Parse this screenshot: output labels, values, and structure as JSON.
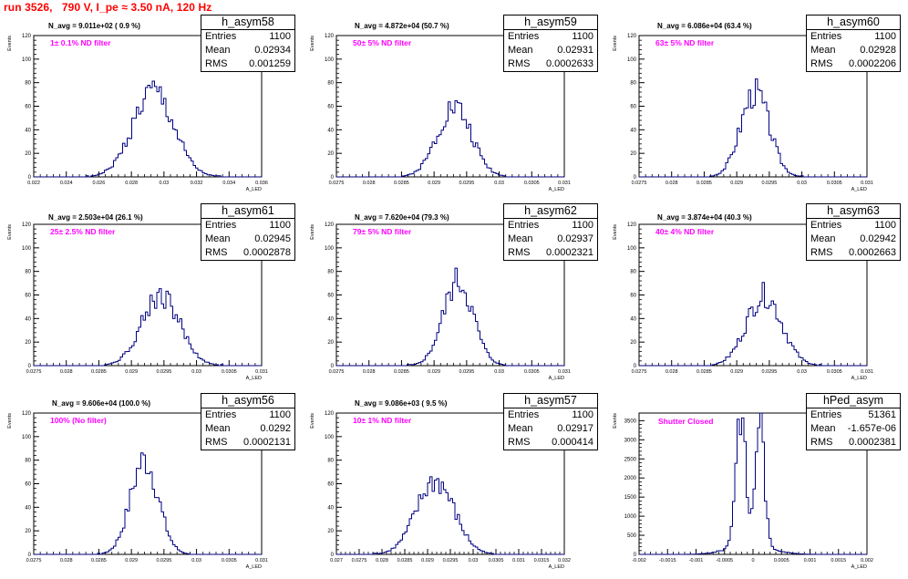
{
  "title": "run 3526,   790 V, I_pe ≈ 3.50 nA, 120 Hz",
  "chart_data": [
    {
      "type": "histogram",
      "name": "h_asym58",
      "navg": "N_avg = 9.011e+02 ( 0.9 %)",
      "filter": "1± 0.1% ND filter",
      "stats": {
        "entries": "1100",
        "mean": "0.02934",
        "rms": "0.001259"
      },
      "xlim": [
        0.022,
        0.036
      ],
      "ylim": [
        0,
        120
      ],
      "xticks": [
        "0.022",
        "0.024",
        "0.026",
        "0.028",
        "0.03",
        "0.032",
        "0.034",
        "0.036"
      ],
      "yticks": [
        "0",
        "20",
        "40",
        "60",
        "80",
        "100",
        "120"
      ],
      "xlabel": "A_LED",
      "ylabel": "Events",
      "mean": 0.02934,
      "sigma": 0.00126,
      "peak": 72,
      "bins": 100,
      "seed": 1
    },
    {
      "type": "histogram",
      "name": "h_asym59",
      "navg": "N_avg = 4.872e+04 (50.7 %)",
      "filter": "50± 5% ND filter",
      "stats": {
        "entries": "1100",
        "mean": "0.02931",
        "rms": "0.0002633"
      },
      "xlim": [
        0.0275,
        0.031
      ],
      "ylim": [
        0,
        120
      ],
      "xticks": [
        "0.0275",
        "0.028",
        "0.0285",
        "0.029",
        "0.0295",
        "0.03",
        "0.0305",
        "0.031"
      ],
      "yticks": [
        "0",
        "20",
        "40",
        "60",
        "80",
        "100",
        "120"
      ],
      "xlabel": "A_LED",
      "ylabel": "Events",
      "mean": 0.02931,
      "sigma": 0.000263,
      "peak": 60,
      "bins": 100,
      "seed": 2
    },
    {
      "type": "histogram",
      "name": "h_asym60",
      "navg": "N_avg = 6.086e+04 (63.4 %)",
      "filter": "63± 5% ND filter",
      "stats": {
        "entries": "1100",
        "mean": "0.02928",
        "rms": "0.0002206"
      },
      "xlim": [
        0.0275,
        0.031
      ],
      "ylim": [
        0,
        120
      ],
      "xticks": [
        "0.0275",
        "0.028",
        "0.0285",
        "0.029",
        "0.0295",
        "0.03",
        "0.0305",
        "0.031"
      ],
      "yticks": [
        "0",
        "20",
        "40",
        "60",
        "80",
        "100",
        "120"
      ],
      "xlabel": "A_LED",
      "ylabel": "Events",
      "mean": 0.02928,
      "sigma": 0.00022,
      "peak": 72,
      "bins": 100,
      "seed": 3
    },
    {
      "type": "histogram",
      "name": "h_asym61",
      "navg": "N_avg = 2.503e+04 (26.1 %)",
      "filter": "25± 2.5% ND filter",
      "stats": {
        "entries": "1100",
        "mean": "0.02945",
        "rms": "0.0002878"
      },
      "xlim": [
        0.0275,
        0.031
      ],
      "ylim": [
        0,
        120
      ],
      "xticks": [
        "0.0275",
        "0.028",
        "0.0285",
        "0.029",
        "0.0295",
        "0.03",
        "0.0305",
        "0.031"
      ],
      "yticks": [
        "0",
        "20",
        "40",
        "60",
        "80",
        "100",
        "120"
      ],
      "xlabel": "A_LED",
      "ylabel": "Events",
      "mean": 0.02945,
      "sigma": 0.00029,
      "peak": 60,
      "bins": 100,
      "seed": 4
    },
    {
      "type": "histogram",
      "name": "h_asym62",
      "navg": "N_avg = 7.620e+04 (79.3 %)",
      "filter": "79± 5% ND filter",
      "stats": {
        "entries": "1100",
        "mean": "0.02937",
        "rms": "0.0002321"
      },
      "xlim": [
        0.0275,
        0.031
      ],
      "ylim": [
        0,
        120
      ],
      "xticks": [
        "0.0275",
        "0.028",
        "0.0285",
        "0.029",
        "0.0295",
        "0.03",
        "0.0305",
        "0.031"
      ],
      "yticks": [
        "0",
        "20",
        "40",
        "60",
        "80",
        "100",
        "120"
      ],
      "xlabel": "A_LED",
      "ylabel": "Events",
      "mean": 0.02937,
      "sigma": 0.00023,
      "peak": 72,
      "bins": 100,
      "seed": 5
    },
    {
      "type": "histogram",
      "name": "h_asym63",
      "navg": "N_avg = 3.874e+04 (40.3 %)",
      "filter": "40± 4% ND filter",
      "stats": {
        "entries": "1100",
        "mean": "0.02942",
        "rms": "0.0002663"
      },
      "xlim": [
        0.0275,
        0.031
      ],
      "ylim": [
        0,
        120
      ],
      "xticks": [
        "0.0275",
        "0.028",
        "0.0285",
        "0.029",
        "0.0295",
        "0.03",
        "0.0305",
        "0.031"
      ],
      "yticks": [
        "0",
        "20",
        "40",
        "60",
        "80",
        "100",
        "120"
      ],
      "xlabel": "A_LED",
      "ylabel": "Events",
      "mean": 0.02942,
      "sigma": 0.00027,
      "peak": 60,
      "bins": 100,
      "seed": 6
    },
    {
      "type": "histogram",
      "name": "h_asym56",
      "navg": "N_avg = 9.606e+04 (100.0 %)",
      "filter": "100% (No filter)",
      "stats": {
        "entries": "1100",
        "mean": "0.0292",
        "rms": "0.0002131"
      },
      "xlim": [
        0.0275,
        0.031
      ],
      "ylim": [
        0,
        120
      ],
      "xticks": [
        "0.0275",
        "0.028",
        "0.0285",
        "0.029",
        "0.0295",
        "0.03",
        "0.0305",
        "0.031"
      ],
      "yticks": [
        "0",
        "20",
        "40",
        "60",
        "80",
        "100",
        "120"
      ],
      "xlabel": "A_LED",
      "ylabel": "Events",
      "mean": 0.0292,
      "sigma": 0.000213,
      "peak": 80,
      "bins": 100,
      "seed": 7
    },
    {
      "type": "histogram",
      "name": "h_asym57",
      "navg": "N_avg = 9.086e+03 ( 9.5 %)",
      "filter": "10± 1% ND filter",
      "stats": {
        "entries": "1100",
        "mean": "0.02917",
        "rms": "0.000414"
      },
      "xlim": [
        0.027,
        0.032
      ],
      "ylim": [
        0,
        120
      ],
      "xticks": [
        "0.027",
        "0.0275",
        "0.028",
        "0.0285",
        "0.029",
        "0.0295",
        "0.03",
        "0.0305",
        "0.031",
        "0.0315",
        "0.032"
      ],
      "yticks": [
        "0",
        "20",
        "40",
        "60",
        "80",
        "100",
        "120"
      ],
      "xlabel": "A_LED",
      "ylabel": "Events",
      "mean": 0.02917,
      "sigma": 0.000414,
      "peak": 62,
      "bins": 100,
      "seed": 8
    },
    {
      "type": "histogram",
      "name": "hPed_asym",
      "navg": "",
      "filter": "Shutter Closed",
      "stats": {
        "entries": "51361",
        "mean": "-1.657e-06",
        "rms": "0.0002381"
      },
      "xlim": [
        -0.002,
        0.002
      ],
      "ylim": [
        0,
        3700
      ],
      "xticks": [
        "-0.002",
        "-0.0015",
        "-0.001",
        "-0.0005",
        "0",
        "0.0005",
        "0.001",
        "0.0015",
        "0.002"
      ],
      "yticks": [
        "0",
        "500",
        "1000",
        "1500",
        "2000",
        "2500",
        "3000",
        "3500"
      ],
      "xlabel": "A_LED",
      "ylabel": "Events",
      "bimodal": true,
      "mean": -1.7e-06,
      "sigma": 0.00024,
      "peak": 3700,
      "bins": 100,
      "seed": 9
    }
  ]
}
